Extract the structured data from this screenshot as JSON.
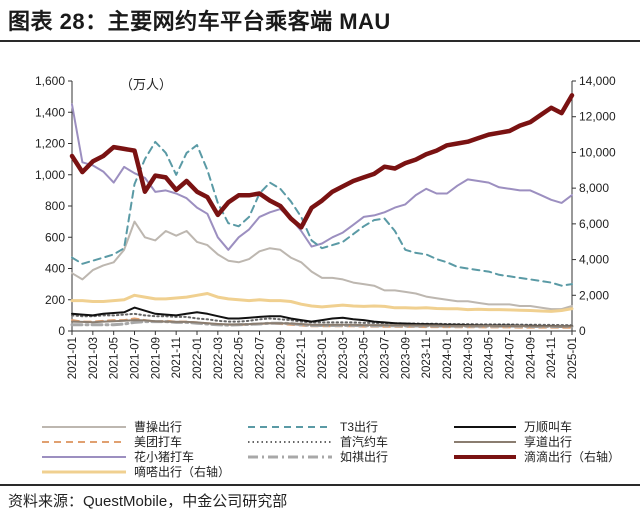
{
  "figure": {
    "title": "图表 28：主要网约车平台乘客端 MAU",
    "source": "资料来源：QuestMobile，中金公司研究部"
  },
  "chart_data": {
    "type": "line",
    "unit_label": "（万人）",
    "y_left": {
      "min": 0,
      "max": 1600,
      "ticks": [
        "0",
        "200",
        "400",
        "600",
        "800",
        "1,000",
        "1,200",
        "1,400",
        "1,600"
      ]
    },
    "y_right": {
      "min": 0,
      "max": 14000,
      "ticks": [
        "0",
        "2,000",
        "4,000",
        "6,000",
        "8,000",
        "10,000",
        "12,000",
        "14,000"
      ]
    },
    "x": [
      "2021-01",
      "2021-02",
      "2021-03",
      "2021-04",
      "2021-05",
      "2021-06",
      "2021-07",
      "2021-08",
      "2021-09",
      "2021-10",
      "2021-11",
      "2021-12",
      "2022-01",
      "2022-02",
      "2022-03",
      "2022-04",
      "2022-05",
      "2022-06",
      "2022-07",
      "2022-08",
      "2022-09",
      "2022-10",
      "2022-11",
      "2022-12",
      "2023-01",
      "2023-02",
      "2023-03",
      "2023-04",
      "2023-05",
      "2023-06",
      "2023-07",
      "2023-08",
      "2023-09",
      "2023-10",
      "2023-11",
      "2023-12",
      "2024-01",
      "2024-02",
      "2024-03",
      "2024-04",
      "2024-05",
      "2024-06",
      "2024-07",
      "2024-08",
      "2024-09",
      "2024-10",
      "2024-11",
      "2024-12",
      "2025-01"
    ],
    "x_tick_labels": [
      "2021-01",
      "2021-03",
      "2021-05",
      "2021-07",
      "2021-09",
      "2021-11",
      "2022-01",
      "2022-03",
      "2022-05",
      "2022-07",
      "2022-09",
      "2022-11",
      "2023-01",
      "2023-03",
      "2023-05",
      "2023-07",
      "2023-09",
      "2023-11",
      "2024-01",
      "2024-03",
      "2024-05",
      "2024-07",
      "2024-09",
      "2024-11",
      "2025-01"
    ],
    "series": [
      {
        "name": "曹操出行",
        "axis": "left",
        "color": "#bdb7b0",
        "dash": "solid",
        "width": 2,
        "values": [
          370,
          330,
          390,
          420,
          440,
          520,
          700,
          600,
          580,
          640,
          610,
          640,
          570,
          550,
          490,
          450,
          440,
          460,
          510,
          530,
          520,
          470,
          440,
          380,
          340,
          340,
          330,
          310,
          300,
          290,
          260,
          260,
          250,
          240,
          220,
          210,
          200,
          190,
          190,
          180,
          170,
          170,
          170,
          160,
          160,
          150,
          140,
          140,
          160
        ]
      },
      {
        "name": "美团打车",
        "axis": "left",
        "color": "#e0a070",
        "dash": "dashed",
        "width": 2,
        "values": [
          70,
          60,
          60,
          65,
          70,
          70,
          80,
          70,
          60,
          65,
          60,
          60,
          55,
          50,
          45,
          40,
          40,
          40,
          45,
          50,
          45,
          40,
          35,
          30,
          30,
          30,
          30,
          30,
          28,
          28,
          27,
          27,
          26,
          26,
          25,
          25,
          25,
          24,
          24,
          24,
          23,
          23,
          23,
          22,
          22,
          22,
          22,
          21,
          21
        ]
      },
      {
        "name": "花小猪打车",
        "axis": "left",
        "color": "#9c8fc0",
        "dash": "solid",
        "width": 2,
        "values": [
          1450,
          1080,
          1060,
          1020,
          950,
          1050,
          1010,
          980,
          890,
          900,
          880,
          850,
          790,
          750,
          600,
          520,
          600,
          650,
          730,
          760,
          780,
          720,
          640,
          540,
          560,
          600,
          630,
          680,
          730,
          740,
          760,
          790,
          810,
          870,
          910,
          880,
          880,
          930,
          970,
          960,
          950,
          920,
          910,
          900,
          900,
          870,
          840,
          820,
          870
        ]
      },
      {
        "name": "嘀嗒出行（右轴）",
        "axis": "right",
        "color": "#f0d090",
        "dash": "solid",
        "width": 3,
        "values": [
          1700,
          1700,
          1650,
          1650,
          1700,
          1750,
          2000,
          1900,
          1800,
          1800,
          1850,
          1900,
          2000,
          2100,
          1900,
          1800,
          1750,
          1700,
          1750,
          1700,
          1700,
          1650,
          1500,
          1400,
          1350,
          1400,
          1450,
          1400,
          1380,
          1400,
          1380,
          1300,
          1300,
          1280,
          1300,
          1260,
          1250,
          1250,
          1200,
          1220,
          1200,
          1200,
          1180,
          1160,
          1150,
          1120,
          1100,
          1150,
          1250
        ]
      },
      {
        "name": "T3出行",
        "axis": "left",
        "color": "#5a9aa5",
        "dash": "dashed",
        "width": 2,
        "values": [
          470,
          430,
          450,
          470,
          490,
          530,
          940,
          1100,
          1210,
          1140,
          1000,
          1140,
          1190,
          1030,
          820,
          690,
          670,
          730,
          880,
          950,
          910,
          830,
          730,
          580,
          530,
          550,
          570,
          620,
          670,
          710,
          720,
          640,
          520,
          500,
          490,
          460,
          440,
          410,
          400,
          390,
          380,
          360,
          350,
          340,
          330,
          320,
          310,
          290,
          300
        ]
      },
      {
        "name": "首汽约车",
        "axis": "left",
        "color": "#666666",
        "dash": "dotted",
        "width": 2,
        "values": [
          100,
          95,
          95,
          100,
          100,
          105,
          110,
          100,
          95,
          95,
          90,
          90,
          80,
          75,
          65,
          60,
          60,
          65,
          75,
          80,
          75,
          70,
          60,
          55,
          55,
          55,
          55,
          55,
          52,
          52,
          50,
          50,
          48,
          48,
          46,
          46,
          45,
          44,
          44,
          43,
          42,
          42,
          42,
          41,
          40,
          40,
          39,
          38,
          38
        ]
      },
      {
        "name": "如祺出行",
        "axis": "left",
        "color": "#a8a8a8",
        "dash": "dashdot",
        "width": 3,
        "values": [
          40,
          40,
          40,
          40,
          40,
          45,
          55,
          60,
          60,
          60,
          55,
          55,
          50,
          45,
          40,
          38,
          40,
          42,
          45,
          50,
          50,
          48,
          40,
          35,
          35,
          35,
          35,
          35,
          34,
          34,
          33,
          33,
          32,
          32,
          32,
          32,
          31,
          31,
          31,
          30,
          30,
          30,
          30,
          30,
          29,
          29,
          29,
          29,
          30
        ]
      },
      {
        "name": "万顺叫车",
        "axis": "left",
        "color": "#111111",
        "dash": "solid",
        "width": 2,
        "values": [
          110,
          105,
          100,
          110,
          115,
          120,
          150,
          130,
          110,
          105,
          100,
          110,
          120,
          110,
          95,
          80,
          80,
          85,
          90,
          95,
          95,
          80,
          70,
          60,
          70,
          80,
          85,
          75,
          70,
          60,
          55,
          50,
          48,
          45,
          44,
          42,
          40,
          40,
          38,
          37,
          36,
          35,
          35,
          34,
          33,
          32,
          32,
          31,
          32
        ]
      },
      {
        "name": "享道出行",
        "axis": "left",
        "color": "#8a7d70",
        "dash": "solid",
        "width": 2,
        "values": [
          60,
          58,
          56,
          60,
          62,
          65,
          70,
          68,
          62,
          60,
          58,
          58,
          55,
          50,
          45,
          42,
          42,
          44,
          48,
          50,
          50,
          48,
          45,
          40,
          40,
          40,
          40,
          40,
          38,
          38,
          38,
          37,
          36,
          36,
          35,
          35,
          34,
          34,
          34,
          33,
          33,
          32,
          32,
          32,
          31,
          31,
          31,
          30,
          30
        ]
      },
      {
        "name": "滴滴出行（右轴）",
        "axis": "right",
        "color": "#7a1212",
        "dash": "solid",
        "width": 4.5,
        "values": [
          9800,
          8900,
          9500,
          9800,
          10300,
          10200,
          10100,
          7800,
          8700,
          8600,
          7900,
          8400,
          7800,
          7500,
          6500,
          7200,
          7600,
          7600,
          7700,
          7300,
          7000,
          6300,
          5800,
          6900,
          7300,
          7800,
          8100,
          8400,
          8600,
          8800,
          9200,
          9100,
          9400,
          9600,
          9900,
          10100,
          10400,
          10500,
          10600,
          10800,
          11000,
          11100,
          11200,
          11500,
          11700,
          12100,
          12500,
          12200,
          13200
        ]
      }
    ],
    "legend": {
      "placement": "bottom",
      "columns": 3
    }
  }
}
